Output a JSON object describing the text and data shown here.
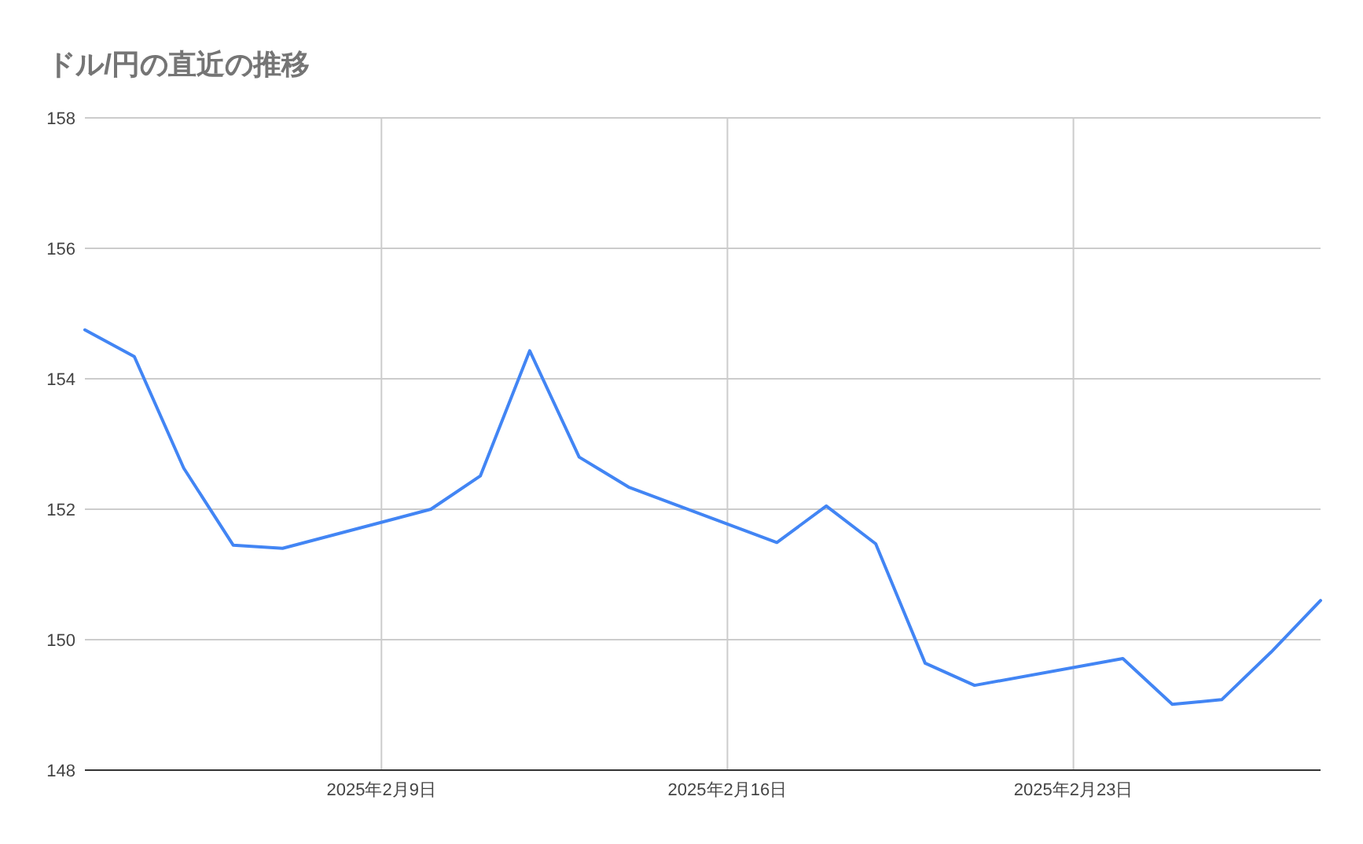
{
  "chart_data": {
    "type": "line",
    "title": "ドル/円の直近の推移",
    "x": [
      "2025-02-03",
      "2025-02-04",
      "2025-02-05",
      "2025-02-06",
      "2025-02-07",
      "2025-02-10",
      "2025-02-11",
      "2025-02-12",
      "2025-02-13",
      "2025-02-14",
      "2025-02-17",
      "2025-02-18",
      "2025-02-19",
      "2025-02-20",
      "2025-02-21",
      "2025-02-24",
      "2025-02-25",
      "2025-02-26",
      "2025-02-27",
      "2025-02-28"
    ],
    "series": [
      {
        "color": "#4285f4",
        "values": [
          154.75,
          154.34,
          152.63,
          151.45,
          151.4,
          152.0,
          152.51,
          154.43,
          152.8,
          152.34,
          151.49,
          152.05,
          151.47,
          149.64,
          149.3,
          149.71,
          149.01,
          149.08,
          149.81,
          150.6
        ]
      }
    ],
    "xlim": [
      "2025-02-03",
      "2025-02-28"
    ],
    "xticks": [
      {
        "value": "2025-02-09",
        "label": "2025年2月9日"
      },
      {
        "value": "2025-02-16",
        "label": "2025年2月16日"
      },
      {
        "value": "2025-02-23",
        "label": "2025年2月23日"
      }
    ],
    "ylim": [
      148,
      158
    ],
    "yticks": [
      148,
      150,
      152,
      154,
      156,
      158
    ],
    "grid": true,
    "marker": "none",
    "line_style": "solid"
  }
}
